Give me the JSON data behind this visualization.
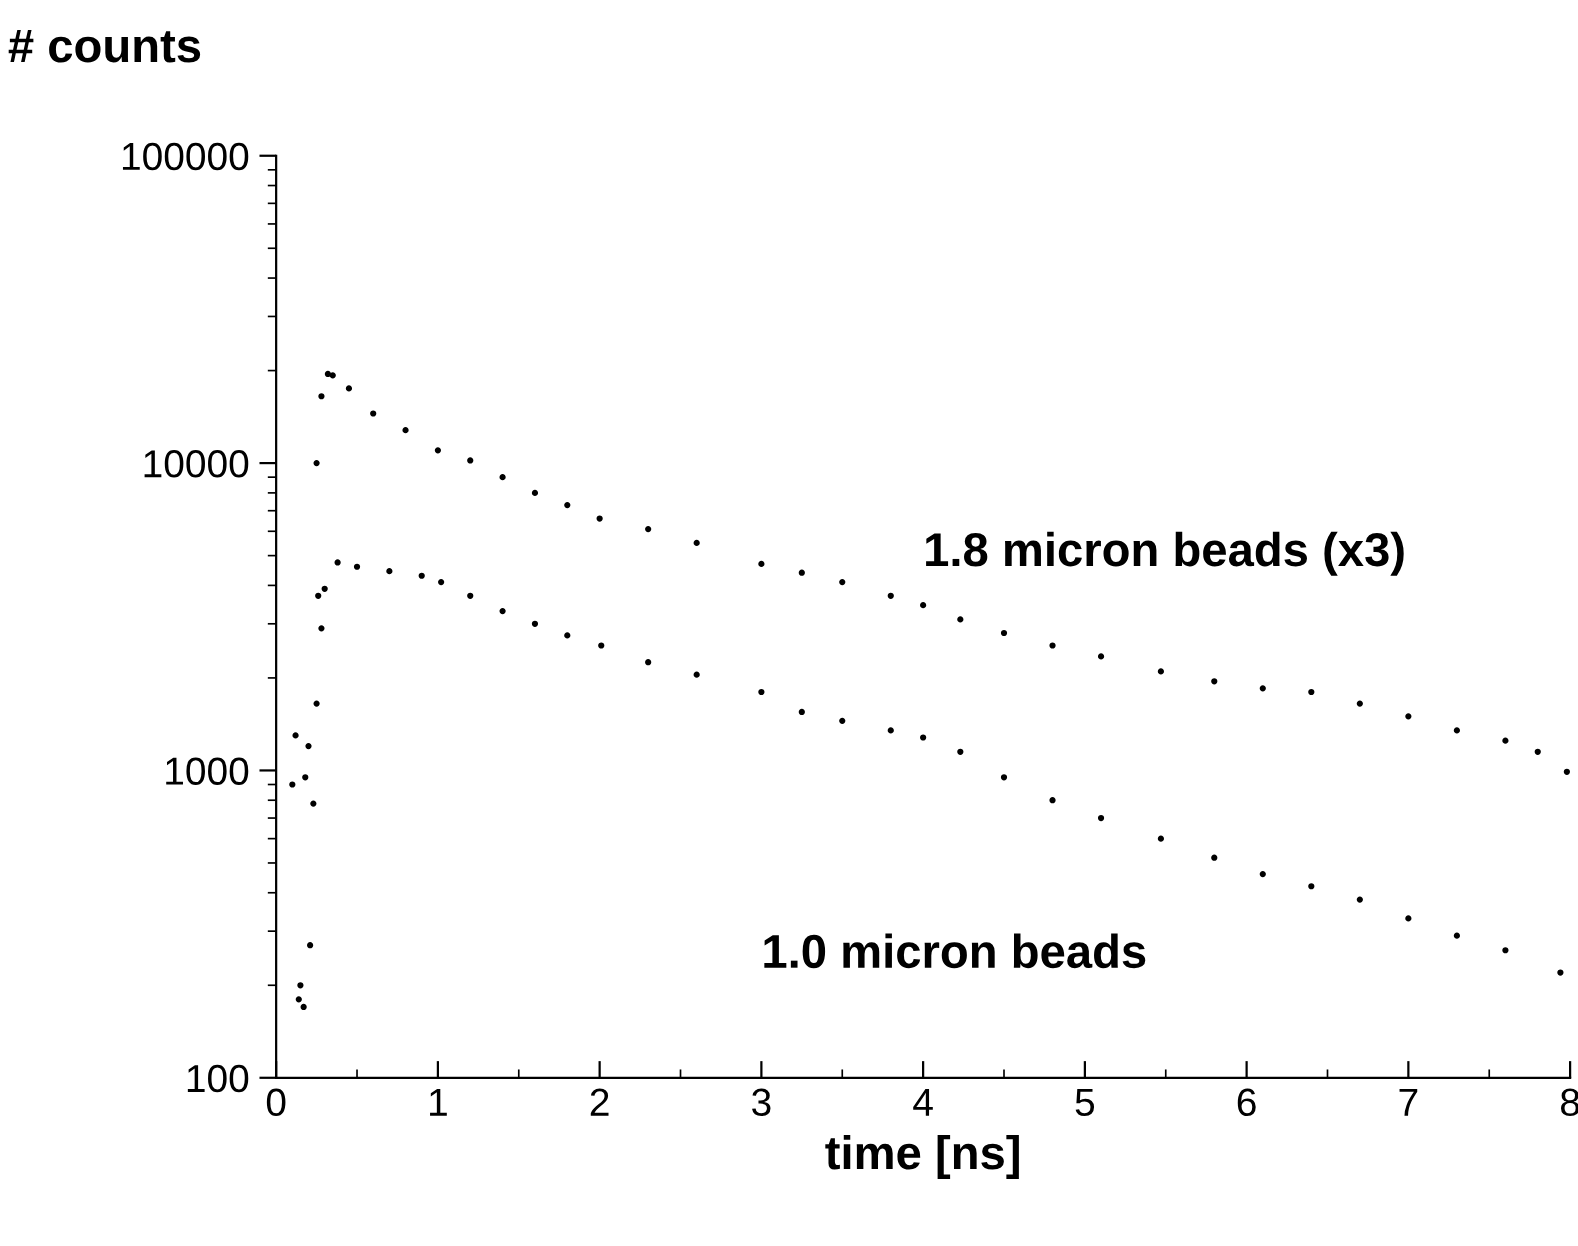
{
  "chart_data": {
    "type": "scatter",
    "xlabel": "time [ns]",
    "ylabel": "# counts",
    "log": "y",
    "xlim": [
      0,
      8
    ],
    "ylim": [
      100,
      100000
    ],
    "xticks": [
      0,
      1,
      2,
      3,
      4,
      5,
      6,
      7,
      8
    ],
    "yticks": [
      100,
      1000,
      10000,
      100000
    ],
    "marker": "circle",
    "grid": false,
    "legend": false,
    "series": [
      {
        "name": "1.8 micron beads (x3)",
        "color": "#000000",
        "x": [
          0.25,
          0.28,
          0.32,
          0.35,
          0.45,
          0.6,
          0.8,
          1.0,
          1.2,
          1.4,
          1.6,
          1.8,
          2.0,
          2.3,
          2.6,
          3.0,
          3.25,
          3.5,
          3.8,
          4.0,
          4.23,
          4.5,
          4.8,
          5.1,
          5.47,
          5.8,
          6.1,
          6.4,
          6.7,
          7.0,
          7.3,
          7.6,
          7.8,
          7.98
        ],
        "values": [
          10000,
          16500,
          19500,
          19300,
          17500,
          14500,
          12800,
          11000,
          10200,
          9000,
          8000,
          7300,
          6600,
          6100,
          5500,
          4700,
          4400,
          4100,
          3700,
          3450,
          3100,
          2800,
          2550,
          2350,
          2100,
          1950,
          1850,
          1800,
          1650,
          1500,
          1350,
          1250,
          1150,
          990
        ]
      },
      {
        "name": "1.0 micron beads",
        "color": "#000000",
        "x": [
          0.1,
          0.12,
          0.14,
          0.15,
          0.17,
          0.18,
          0.2,
          0.21,
          0.23,
          0.25,
          0.26,
          0.28,
          0.3,
          0.38,
          0.5,
          0.7,
          0.9,
          1.02,
          1.2,
          1.4,
          1.6,
          1.8,
          2.01,
          2.3,
          2.6,
          3.0,
          3.25,
          3.5,
          3.8,
          4.0,
          4.23,
          4.5,
          4.8,
          5.1,
          5.47,
          5.8,
          6.1,
          6.4,
          6.7,
          7.0,
          7.3,
          7.6,
          7.94
        ],
        "values": [
          900,
          1300,
          180,
          200,
          170,
          950,
          1200,
          270,
          780,
          1650,
          3700,
          2900,
          3900,
          4750,
          4600,
          4450,
          4300,
          4100,
          3700,
          3300,
          3000,
          2750,
          2550,
          2250,
          2050,
          1800,
          1550,
          1450,
          1350,
          1280,
          1150,
          950,
          800,
          700,
          600,
          520,
          460,
          420,
          380,
          330,
          290,
          260,
          220
        ]
      }
    ]
  }
}
